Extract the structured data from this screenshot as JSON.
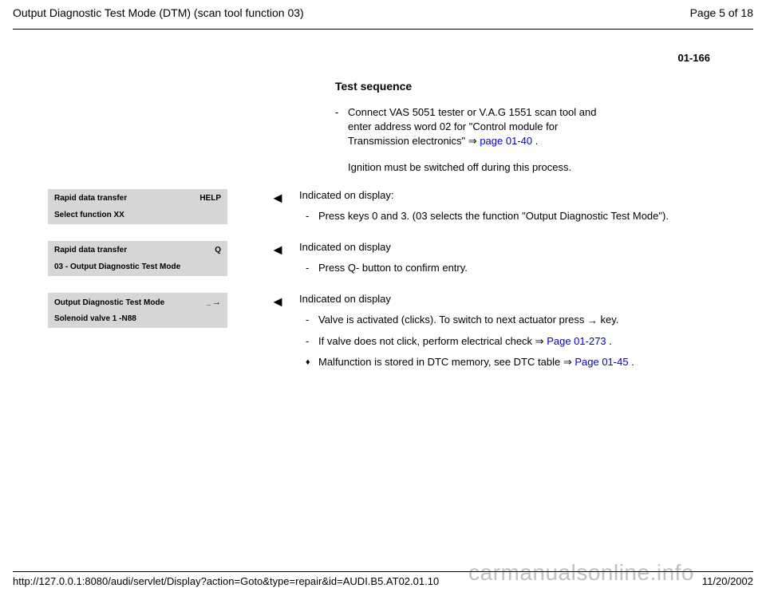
{
  "header": {
    "title": "Output Diagnostic Test Mode (DTM) (scan tool function 03)",
    "pageInfo": "Page 5 of 18"
  },
  "pageNumberTop": "01-166",
  "sectionTitle": "Test sequence",
  "intro": {
    "item1_prefix": "Connect VAS 5051 tester or V.A.G 1551 scan tool and enter address word 02 for \"Control module for Transmission electronics\"  ",
    "item1_link": "page 01-40",
    "item1_suffix": " .",
    "note": "Ignition must be switched off during this process."
  },
  "displays": {
    "box1": {
      "line1_left": "Rapid data transfer",
      "line1_right": "HELP",
      "line2": "Select function XX"
    },
    "box2": {
      "line1_left": "Rapid data transfer",
      "line1_right": "Q",
      "line2": "03 - Output Diagnostic Test Mode"
    },
    "box3": {
      "line1_left": "Output Diagnostic Test Mode",
      "line1_right": "→",
      "line2": "Solenoid valve 1 -N88"
    }
  },
  "section1": {
    "label": "Indicated on display:",
    "item1": "Press keys 0 and 3. (03 selects the function \"Output Diagnostic Test Mode\")."
  },
  "section2": {
    "label": "Indicated on display",
    "item1": "Press Q- button to confirm entry."
  },
  "section3": {
    "label": "Indicated on display",
    "item1_prefix": "Valve is activated (clicks). To switch to next actuator press ",
    "item1_suffix": " key.",
    "item2_prefix": "If valve does not click, perform electrical check  ",
    "item2_link": "Page 01-273",
    "item2_suffix": " .",
    "item3_prefix": "Malfunction is stored in DTC memory, see DTC table  ",
    "item3_link": "Page 01-45",
    "item3_suffix": " ."
  },
  "footer": {
    "url": "http://127.0.0.1:8080/audi/servlet/Display?action=Goto&type=repair&id=AUDI.B5.AT02.01.10",
    "date": "11/20/2002"
  },
  "watermark": "carmanualsonline.info",
  "symbols": {
    "arrow": "⇒",
    "triangleLeft": "◄",
    "arrowRight": "→",
    "diamond": "♦"
  }
}
